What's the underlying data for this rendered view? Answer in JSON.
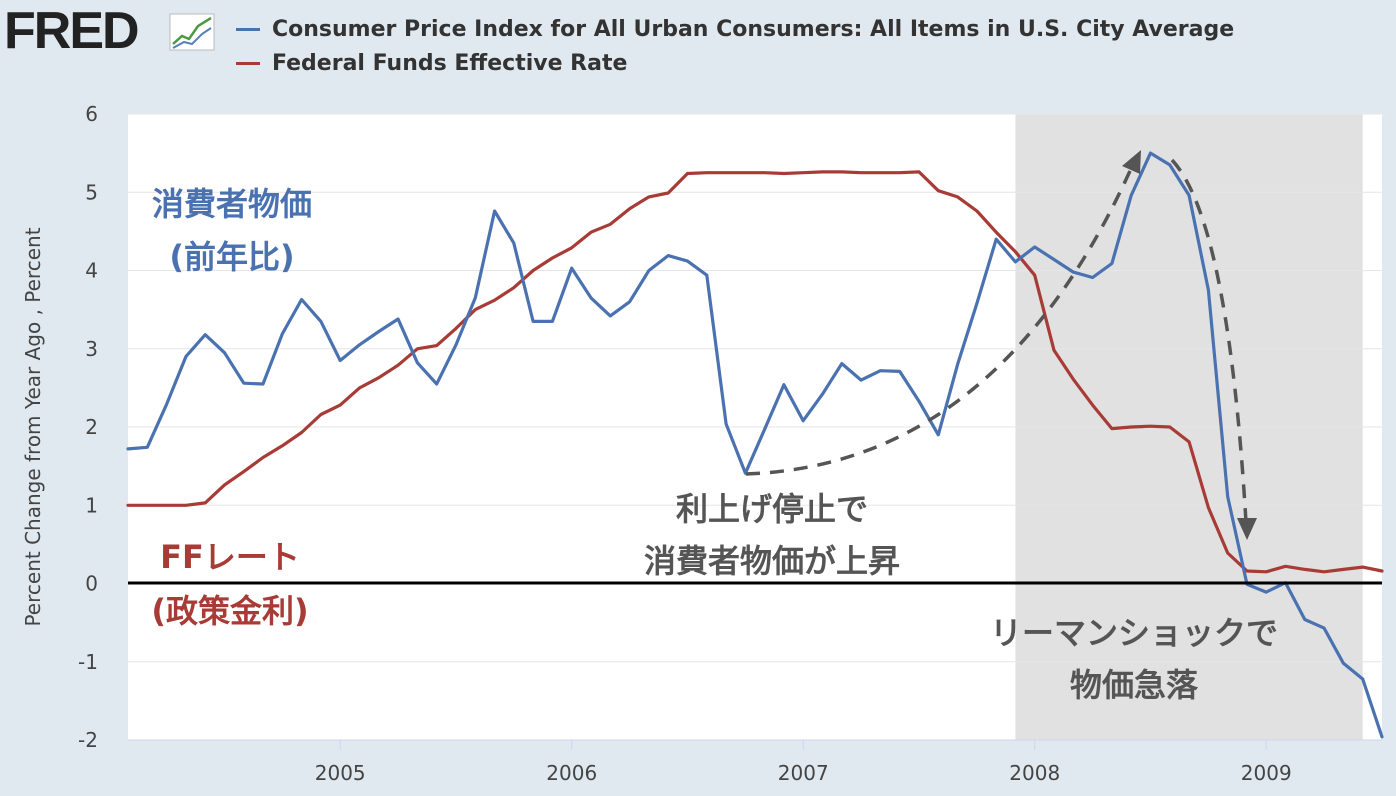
{
  "header": {
    "logo_text": "FRED"
  },
  "colors": {
    "cpi": "#4a72b0",
    "ffr": "#a83b35",
    "background": "#e1e9f0",
    "plot_bg": "#ffffff",
    "recession": "#e1e1e1"
  },
  "chart_data": {
    "type": "line",
    "title": "",
    "ylabel": "Percent Change from Year Ago , Percent",
    "xlabel": "",
    "ylim": [
      -2,
      6
    ],
    "xlim": [
      "2004-02",
      "2009-07"
    ],
    "y_ticks": [
      "6",
      "5",
      "4",
      "3",
      "2",
      "1",
      "0",
      "-1",
      "-2"
    ],
    "x_ticks": [
      "2005",
      "2006",
      "2007",
      "2008",
      "2009"
    ],
    "recession": {
      "start": "2007-12",
      "end": "2009-06"
    },
    "series": [
      {
        "name": "Consumer Price Index for All Urban Consumers: All Items in U.S. City Average",
        "color": "#4a72b0",
        "points": [
          [
            "2004-02",
            1.72
          ],
          [
            "2004-03",
            1.74
          ],
          [
            "2004-04",
            2.29
          ],
          [
            "2004-05",
            2.9
          ],
          [
            "2004-06",
            3.18
          ],
          [
            "2004-07",
            2.95
          ],
          [
            "2004-08",
            2.56
          ],
          [
            "2004-09",
            2.55
          ],
          [
            "2004-10",
            3.19
          ],
          [
            "2004-11",
            3.63
          ],
          [
            "2004-12",
            3.35
          ],
          [
            "2005-01",
            2.85
          ],
          [
            "2005-02",
            3.05
          ],
          [
            "2005-03",
            3.22
          ],
          [
            "2005-04",
            3.38
          ],
          [
            "2005-05",
            2.82
          ],
          [
            "2005-06",
            2.55
          ],
          [
            "2005-07",
            3.05
          ],
          [
            "2005-08",
            3.65
          ],
          [
            "2005-09",
            4.76
          ],
          [
            "2005-10",
            4.35
          ],
          [
            "2005-11",
            3.35
          ],
          [
            "2005-12",
            3.35
          ],
          [
            "2006-01",
            4.03
          ],
          [
            "2006-02",
            3.65
          ],
          [
            "2006-03",
            3.42
          ],
          [
            "2006-04",
            3.6
          ],
          [
            "2006-05",
            4.0
          ],
          [
            "2006-06",
            4.19
          ],
          [
            "2006-07",
            4.12
          ],
          [
            "2006-08",
            3.94
          ],
          [
            "2006-09",
            2.04
          ],
          [
            "2006-10",
            1.41
          ],
          [
            "2006-11",
            1.97
          ],
          [
            "2006-12",
            2.54
          ],
          [
            "2007-01",
            2.08
          ],
          [
            "2007-02",
            2.42
          ],
          [
            "2007-03",
            2.81
          ],
          [
            "2007-04",
            2.6
          ],
          [
            "2007-05",
            2.72
          ],
          [
            "2007-06",
            2.71
          ],
          [
            "2007-07",
            2.33
          ],
          [
            "2007-08",
            1.9
          ],
          [
            "2007-09",
            2.8
          ],
          [
            "2007-10",
            3.58
          ],
          [
            "2007-11",
            4.4
          ],
          [
            "2007-12",
            4.11
          ],
          [
            "2008-01",
            4.3
          ],
          [
            "2008-02",
            4.14
          ],
          [
            "2008-03",
            3.98
          ],
          [
            "2008-04",
            3.91
          ],
          [
            "2008-05",
            4.09
          ],
          [
            "2008-06",
            4.96
          ],
          [
            "2008-07",
            5.5
          ],
          [
            "2008-08",
            5.35
          ],
          [
            "2008-09",
            4.96
          ],
          [
            "2008-10",
            3.75
          ],
          [
            "2008-11",
            1.11
          ],
          [
            "2008-12",
            -0.01
          ],
          [
            "2009-01",
            -0.11
          ],
          [
            "2009-02",
            0.01
          ],
          [
            "2009-03",
            -0.46
          ],
          [
            "2009-04",
            -0.57
          ],
          [
            "2009-05",
            -1.02
          ],
          [
            "2009-06",
            -1.22
          ],
          [
            "2009-07",
            -1.96
          ]
        ]
      },
      {
        "name": "Federal Funds Effective Rate",
        "color": "#a83b35",
        "points": [
          [
            "2004-02",
            1.0
          ],
          [
            "2004-03",
            1.0
          ],
          [
            "2004-04",
            1.0
          ],
          [
            "2004-05",
            1.0
          ],
          [
            "2004-06",
            1.03
          ],
          [
            "2004-07",
            1.26
          ],
          [
            "2004-08",
            1.43
          ],
          [
            "2004-09",
            1.61
          ],
          [
            "2004-10",
            1.76
          ],
          [
            "2004-11",
            1.93
          ],
          [
            "2004-12",
            2.16
          ],
          [
            "2005-01",
            2.28
          ],
          [
            "2005-02",
            2.5
          ],
          [
            "2005-03",
            2.63
          ],
          [
            "2005-04",
            2.79
          ],
          [
            "2005-05",
            3.0
          ],
          [
            "2005-06",
            3.04
          ],
          [
            "2005-07",
            3.26
          ],
          [
            "2005-08",
            3.5
          ],
          [
            "2005-09",
            3.62
          ],
          [
            "2005-10",
            3.78
          ],
          [
            "2005-11",
            4.0
          ],
          [
            "2005-12",
            4.16
          ],
          [
            "2006-01",
            4.29
          ],
          [
            "2006-02",
            4.49
          ],
          [
            "2006-03",
            4.59
          ],
          [
            "2006-04",
            4.79
          ],
          [
            "2006-05",
            4.94
          ],
          [
            "2006-06",
            4.99
          ],
          [
            "2006-07",
            5.24
          ],
          [
            "2006-08",
            5.25
          ],
          [
            "2006-09",
            5.25
          ],
          [
            "2006-10",
            5.25
          ],
          [
            "2006-11",
            5.25
          ],
          [
            "2006-12",
            5.24
          ],
          [
            "2007-01",
            5.25
          ],
          [
            "2007-02",
            5.26
          ],
          [
            "2007-03",
            5.26
          ],
          [
            "2007-04",
            5.25
          ],
          [
            "2007-05",
            5.25
          ],
          [
            "2007-06",
            5.25
          ],
          [
            "2007-07",
            5.26
          ],
          [
            "2007-08",
            5.02
          ],
          [
            "2007-09",
            4.94
          ],
          [
            "2007-10",
            4.76
          ],
          [
            "2007-11",
            4.49
          ],
          [
            "2007-12",
            4.24
          ],
          [
            "2008-01",
            3.94
          ],
          [
            "2008-02",
            2.98
          ],
          [
            "2008-03",
            2.61
          ],
          [
            "2008-04",
            2.28
          ],
          [
            "2008-05",
            1.98
          ],
          [
            "2008-06",
            2.0
          ],
          [
            "2008-07",
            2.01
          ],
          [
            "2008-08",
            2.0
          ],
          [
            "2008-09",
            1.81
          ],
          [
            "2008-10",
            0.97
          ],
          [
            "2008-11",
            0.39
          ],
          [
            "2008-12",
            0.16
          ],
          [
            "2009-01",
            0.15
          ],
          [
            "2009-02",
            0.22
          ],
          [
            "2009-03",
            0.18
          ],
          [
            "2009-04",
            0.15
          ],
          [
            "2009-05",
            0.18
          ],
          [
            "2009-06",
            0.21
          ],
          [
            "2009-07",
            0.16
          ]
        ]
      }
    ],
    "annotations": {
      "cpi_label_1": "消費者物価",
      "cpi_label_2": "(前年比)",
      "ff_label_1": "FFレート",
      "ff_label_2": "(政策金利)",
      "pause_1": "利上げ停止で",
      "pause_2": "消費者物価が上昇",
      "lehman_1": "リーマンショックで",
      "lehman_2": "物価急落"
    }
  }
}
